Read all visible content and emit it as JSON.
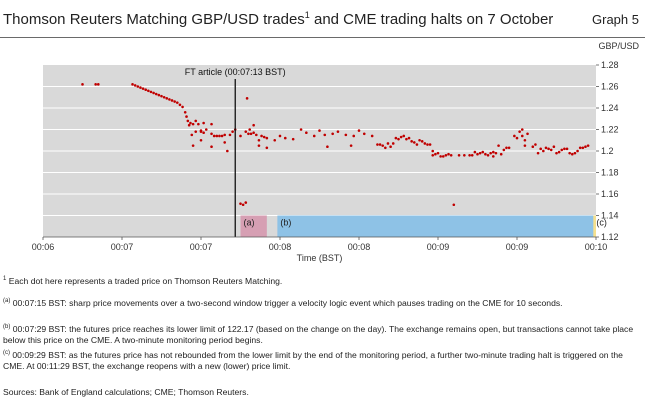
{
  "header": {
    "title_main": "Thomson Reuters Matching GBP/USD trades",
    "title_sup": "1",
    "title_tail": " and CME trading halts on 7 October",
    "graph_label": "Graph 5",
    "unit_label": "GBP/USD"
  },
  "chart_data": {
    "type": "scatter",
    "xlabel": "Time (BST)",
    "ylabel": "",
    "unit": "GBP/USD",
    "x_ticks": [
      "00:06",
      "00:07",
      "00:07",
      "00:08",
      "00:08",
      "00:09",
      "00:09",
      "00:10"
    ],
    "x_tick_seconds": [
      0,
      30,
      60,
      90,
      120,
      150,
      180,
      210
    ],
    "x_range_seconds": [
      0,
      210
    ],
    "y_ticks": [
      "1.12",
      "1.14",
      "1.16",
      "1.18",
      "1.2",
      "1.22",
      "1.24",
      "1.26",
      "1.28"
    ],
    "ylim": [
      1.12,
      1.28
    ],
    "grid": "horizontal",
    "annotation": {
      "label": "FT article (00:07:13 BST)",
      "time": "00:07:13"
    },
    "halt_bands": [
      {
        "label": "(a)",
        "from": "00:07:15",
        "to": "00:07:25",
        "color": "#d69fb3"
      },
      {
        "label": "(b)",
        "from": "00:07:29",
        "to": "00:09:29",
        "color": "#8ec2e6"
      },
      {
        "label": "(c)",
        "from": "00:09:29",
        "to": "00:10:06",
        "color": "#f5e08d"
      }
    ],
    "background_color": "#d9d9d9",
    "point_color": "#c00000",
    "series": [
      {
        "points": [
          [
            15,
            1.262
          ],
          [
            20,
            1.262
          ],
          [
            21,
            1.262
          ],
          [
            34,
            1.262
          ],
          [
            35,
            1.261
          ],
          [
            36,
            1.26
          ],
          [
            37,
            1.259
          ],
          [
            38,
            1.258
          ],
          [
            39,
            1.257
          ],
          [
            40,
            1.256
          ],
          [
            41,
            1.255
          ],
          [
            42,
            1.254
          ],
          [
            43,
            1.253
          ],
          [
            44,
            1.252
          ],
          [
            45,
            1.251
          ],
          [
            46,
            1.25
          ],
          [
            47,
            1.249
          ],
          [
            48,
            1.248
          ],
          [
            49,
            1.247
          ],
          [
            50,
            1.246
          ],
          [
            51,
            1.245
          ],
          [
            52,
            1.243
          ],
          [
            53,
            1.241
          ],
          [
            54,
            1.236
          ],
          [
            54.5,
            1.232
          ],
          [
            55,
            1.228
          ],
          [
            55.5,
            1.224
          ],
          [
            56,
            1.226
          ],
          [
            57,
            1.225
          ],
          [
            57,
            1.205
          ],
          [
            56.5,
            1.215
          ],
          [
            58,
            1.228
          ],
          [
            58,
            1.218
          ],
          [
            59,
            1.225
          ],
          [
            60,
            1.21
          ],
          [
            60,
            1.218
          ],
          [
            60,
            1.219
          ],
          [
            61,
            1.217
          ],
          [
            61,
            1.226
          ],
          [
            62,
            1.22
          ],
          [
            64,
            1.204
          ],
          [
            64,
            1.225
          ],
          [
            64,
            1.216
          ],
          [
            65,
            1.214
          ],
          [
            66,
            1.214
          ],
          [
            67,
            1.214
          ],
          [
            68,
            1.214
          ],
          [
            69,
            1.215
          ],
          [
            69,
            1.208
          ],
          [
            70,
            1.2
          ],
          [
            71,
            1.215
          ],
          [
            72,
            1.218
          ],
          [
            73,
            1.22
          ],
          [
            75,
            1.214
          ],
          [
            75,
            1.151
          ],
          [
            76,
            1.15
          ],
          [
            77,
            1.152
          ],
          [
            77,
            1.218
          ],
          [
            77.5,
            1.249
          ],
          [
            78,
            1.216
          ],
          [
            78.5,
            1.22
          ],
          [
            79,
            1.216
          ],
          [
            80,
            1.217
          ],
          [
            80,
            1.224
          ],
          [
            81,
            1.215
          ],
          [
            82,
            1.21
          ],
          [
            82,
            1.205
          ],
          [
            83,
            1.214
          ],
          [
            84,
            1.213
          ],
          [
            85,
            1.212
          ],
          [
            85,
            1.203
          ],
          [
            88,
            1.21
          ],
          [
            90,
            1.214
          ],
          [
            92,
            1.212
          ],
          [
            95,
            1.211
          ],
          [
            98,
            1.22
          ],
          [
            100,
            1.217
          ],
          [
            103,
            1.214
          ],
          [
            105,
            1.219
          ],
          [
            107,
            1.215
          ],
          [
            108,
            1.204
          ],
          [
            110,
            1.216
          ],
          [
            112,
            1.218
          ],
          [
            115,
            1.215
          ],
          [
            117,
            1.205
          ],
          [
            118,
            1.214
          ],
          [
            120,
            1.219
          ],
          [
            122,
            1.216
          ],
          [
            125,
            1.214
          ],
          [
            127,
            1.206
          ],
          [
            128,
            1.206
          ],
          [
            129,
            1.205
          ],
          [
            130,
            1.203
          ],
          [
            131,
            1.207
          ],
          [
            132,
            1.204
          ],
          [
            133,
            1.207
          ],
          [
            134,
            1.212
          ],
          [
            135,
            1.211
          ],
          [
            136,
            1.213
          ],
          [
            137,
            1.214
          ],
          [
            138,
            1.211
          ],
          [
            139,
            1.212
          ],
          [
            140,
            1.209
          ],
          [
            141,
            1.208
          ],
          [
            142,
            1.206
          ],
          [
            143,
            1.21
          ],
          [
            144,
            1.209
          ],
          [
            145,
            1.207
          ],
          [
            146,
            1.206
          ],
          [
            147,
            1.206
          ],
          [
            148,
            1.2
          ],
          [
            148,
            1.196
          ],
          [
            149,
            1.197
          ],
          [
            150,
            1.198
          ],
          [
            151,
            1.195
          ],
          [
            152,
            1.195
          ],
          [
            153,
            1.196
          ],
          [
            154,
            1.197
          ],
          [
            155,
            1.196
          ],
          [
            156,
            1.15
          ],
          [
            158,
            1.196
          ],
          [
            160,
            1.196
          ],
          [
            162,
            1.196
          ],
          [
            163,
            1.196
          ],
          [
            164,
            1.199
          ],
          [
            165,
            1.197
          ],
          [
            166,
            1.198
          ],
          [
            167,
            1.199
          ],
          [
            168,
            1.197
          ],
          [
            169,
            1.196
          ],
          [
            170,
            1.198
          ],
          [
            171,
            1.199
          ],
          [
            171,
            1.195
          ],
          [
            172,
            1.198
          ],
          [
            173,
            1.205
          ],
          [
            174,
            1.197
          ],
          [
            175,
            1.201
          ],
          [
            176,
            1.203
          ],
          [
            177,
            1.203
          ],
          [
            179,
            1.214
          ],
          [
            180,
            1.212
          ],
          [
            181,
            1.218
          ],
          [
            182,
            1.22
          ],
          [
            182,
            1.214
          ],
          [
            183,
            1.21
          ],
          [
            183,
            1.205
          ],
          [
            184,
            1.216
          ],
          [
            186,
            1.204
          ],
          [
            187,
            1.206
          ],
          [
            188,
            1.198
          ],
          [
            189,
            1.202
          ],
          [
            190,
            1.2
          ],
          [
            191,
            1.203
          ],
          [
            192,
            1.202
          ],
          [
            193,
            1.201
          ],
          [
            194,
            1.204
          ],
          [
            195,
            1.198
          ],
          [
            196,
            1.199
          ],
          [
            197,
            1.201
          ],
          [
            198,
            1.202
          ],
          [
            199,
            1.202
          ],
          [
            200,
            1.198
          ],
          [
            201,
            1.197
          ],
          [
            202,
            1.198
          ],
          [
            203,
            1.2
          ],
          [
            204,
            1.203
          ],
          [
            205,
            1.203
          ],
          [
            206,
            1.204
          ],
          [
            207,
            1.205
          ]
        ]
      }
    ]
  },
  "notes": {
    "n1_mark": "1",
    "n1_text": " Each dot here represents a traded price on Thomson Reuters Matching.",
    "na_mark": "(a)",
    "na_text": " 00:07:15 BST: sharp price movements over a two-second window trigger a velocity logic event which pauses trading on the CME for 10 seconds.",
    "nb_mark": "(b)",
    "nb_text": " 00:07:29 BST: the futures price reaches its lower limit of 122.17 (based on the change on the day). The exchange remains open, but transactions cannot take place below this price on the CME. A two-minute monitoring period begins.",
    "nc_mark": "(c)",
    "nc_text": " 00:09:29 BST: as the futures price has not rebounded from the lower limit by the end of the monitoring period, a further two-minute trading halt is triggered on the CME. At 00:11:29 BST, the exchange reopens with a new (lower) price limit.",
    "sources": "Sources: Bank of England calculations; CME; Thomson Reuters."
  }
}
